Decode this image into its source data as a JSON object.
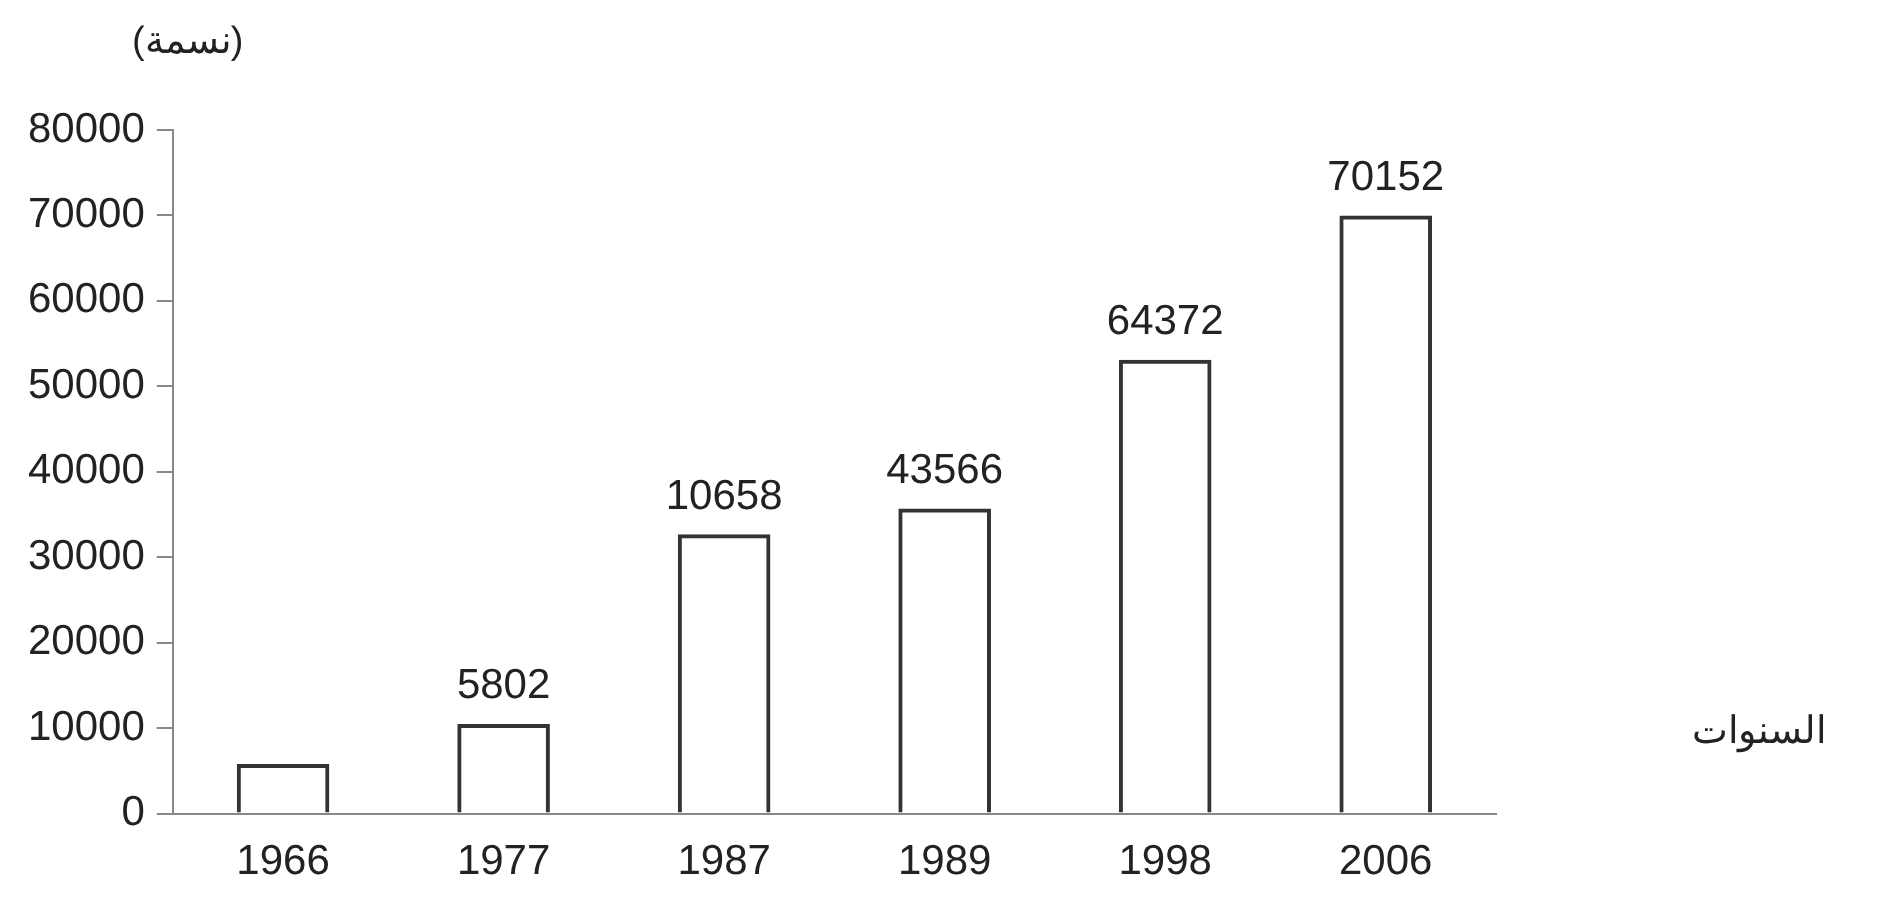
{
  "chart_data": {
    "type": "bar",
    "ylabel": "(نسمة)",
    "categories": [
      "1966",
      "1977",
      "1987",
      "1989",
      "1998",
      "2006"
    ],
    "values": [
      5800,
      10500,
      32700,
      35700,
      53100,
      70000
    ],
    "annotations": [
      {
        "text": "5802",
        "x": "1977",
        "y": 10500
      },
      {
        "text": "10658",
        "x": "1987",
        "y": 32700
      },
      {
        "text": "43566",
        "x": "1989",
        "y": 35700
      },
      {
        "text": "64372",
        "x": "1998",
        "y": 53100
      },
      {
        "text": "70152",
        "x": "2006",
        "y": 70000
      },
      "السنوات"
    ],
    "color": "#333333",
    "ylim": [
      0,
      80000
    ],
    "yticks": [
      0,
      10000,
      20000,
      30000,
      40000,
      50000,
      60000,
      70000,
      80000
    ],
    "grid": false,
    "legend": false
  }
}
